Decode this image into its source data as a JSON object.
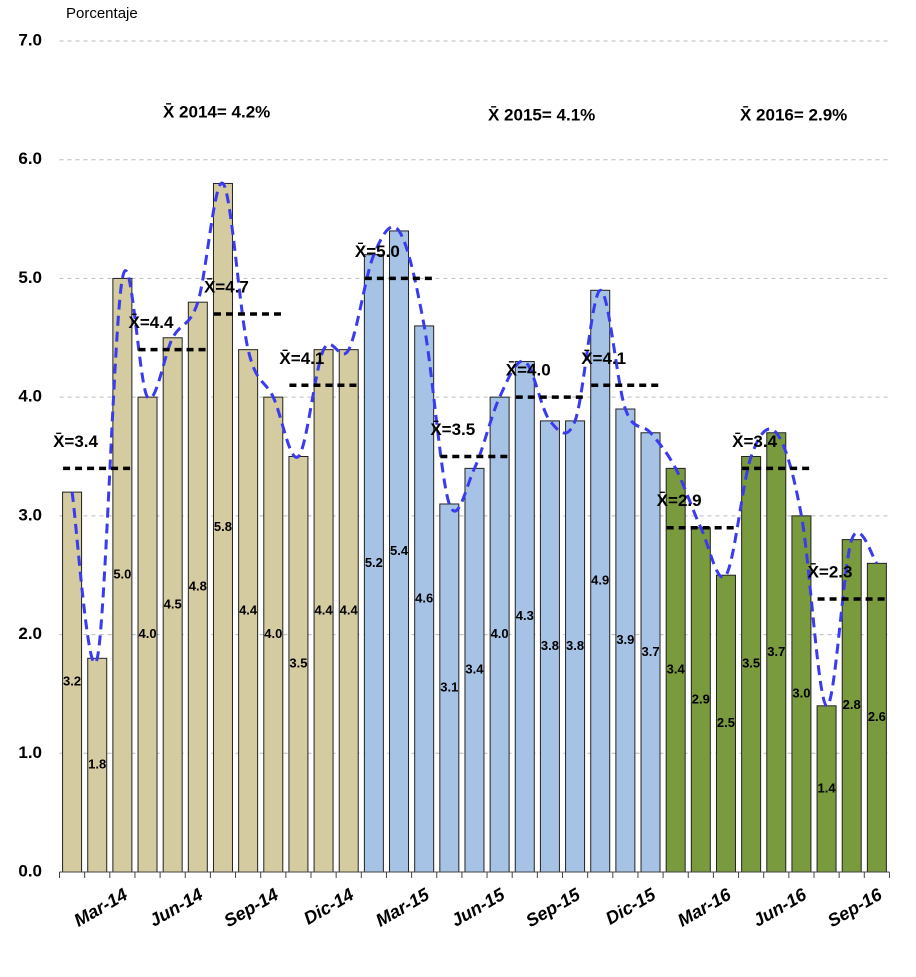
{
  "chart_data": {
    "type": "bar",
    "y_label": "Porcentaje",
    "categories": [
      null,
      null,
      "Mar-14",
      null,
      null,
      "Jun-14",
      null,
      null,
      "Sep-14",
      null,
      null,
      "Dic-14",
      null,
      null,
      "Mar-15",
      null,
      null,
      "Jun-15",
      null,
      null,
      "Sep-15",
      null,
      null,
      "Dic-15",
      null,
      null,
      "Mar-16",
      null,
      null,
      "Jun-16",
      null,
      null,
      "Sep-16"
    ],
    "values": [
      3.2,
      1.8,
      5.0,
      4.0,
      4.5,
      4.8,
      5.8,
      4.4,
      4.0,
      3.5,
      4.4,
      4.4,
      5.2,
      5.4,
      4.6,
      3.1,
      3.4,
      4.0,
      4.3,
      3.8,
      3.8,
      4.9,
      3.9,
      3.7,
      3.4,
      2.9,
      2.5,
      3.5,
      3.7,
      3.0,
      1.4,
      2.8,
      2.6
    ],
    "value_labels": [
      "3.2",
      "1.8",
      "5.0",
      "4.0",
      "4.5",
      "4.8",
      "5.8",
      "4.4",
      "4.0",
      "3.5",
      "4.4",
      "4.4",
      "5.2",
      "5.4",
      "4.6",
      "3.1",
      "3.4",
      "4.0",
      "4.3",
      "3.8",
      "3.8",
      "4.9",
      "3.9",
      "3.7",
      "3.4",
      "2.9",
      "2.5",
      "3.5",
      "3.7",
      "3.0",
      "1.4",
      "2.8",
      "2.6"
    ],
    "colors": [
      "#d4cba1",
      "#d4cba1",
      "#d4cba1",
      "#d4cba1",
      "#d4cba1",
      "#d4cba1",
      "#d4cba1",
      "#d4cba1",
      "#d4cba1",
      "#d4cba1",
      "#d4cba1",
      "#d4cba1",
      "#a6c3e6",
      "#a6c3e6",
      "#a6c3e6",
      "#a6c3e6",
      "#a6c3e6",
      "#a6c3e6",
      "#a6c3e6",
      "#a6c3e6",
      "#a6c3e6",
      "#a6c3e6",
      "#a6c3e6",
      "#a6c3e6",
      "#7a9a3e",
      "#7a9a3e",
      "#7a9a3e",
      "#7a9a3e",
      "#7a9a3e",
      "#7a9a3e",
      "#7a9a3e",
      "#7a9a3e",
      "#7a9a3e"
    ],
    "line_color": "#3a3aee",
    "quarter_means": [
      {
        "value": 3.4,
        "label": "X̄=3.4"
      },
      {
        "value": 4.4,
        "label": "X̄=4.4"
      },
      {
        "value": 4.7,
        "label": "X̄=4.7"
      },
      {
        "value": 4.1,
        "label": "X̄=4.1"
      },
      {
        "value": 5.0,
        "label": "X̄=5.0"
      },
      {
        "value": 3.5,
        "label": "X̄=3.5"
      },
      {
        "value": 4.0,
        "label": "X̄=4.0"
      },
      {
        "value": 4.1,
        "label": "X̄=4.1"
      },
      {
        "value": 2.9,
        "label": "X̄=2.9"
      },
      {
        "value": 3.4,
        "label": "X̄=3.4"
      },
      {
        "value": 2.3,
        "label": "X̄=2.3"
      }
    ],
    "annual_means": [
      "X̄  2014= 4.2%",
      "X̄  2015= 4.1%",
      "X̄  2016= 2.9%"
    ],
    "ylim": [
      0,
      7
    ],
    "yticks": [
      {
        "value": 0,
        "label": "0.0"
      },
      {
        "value": 1,
        "label": "1.0"
      },
      {
        "value": 2,
        "label": "2.0"
      },
      {
        "value": 3,
        "label": "3.0"
      },
      {
        "value": 4,
        "label": "4.0"
      },
      {
        "value": 5,
        "label": "5.0"
      },
      {
        "value": 6,
        "label": "6.0"
      },
      {
        "value": 7,
        "label": "7.0"
      }
    ],
    "grid": true
  }
}
